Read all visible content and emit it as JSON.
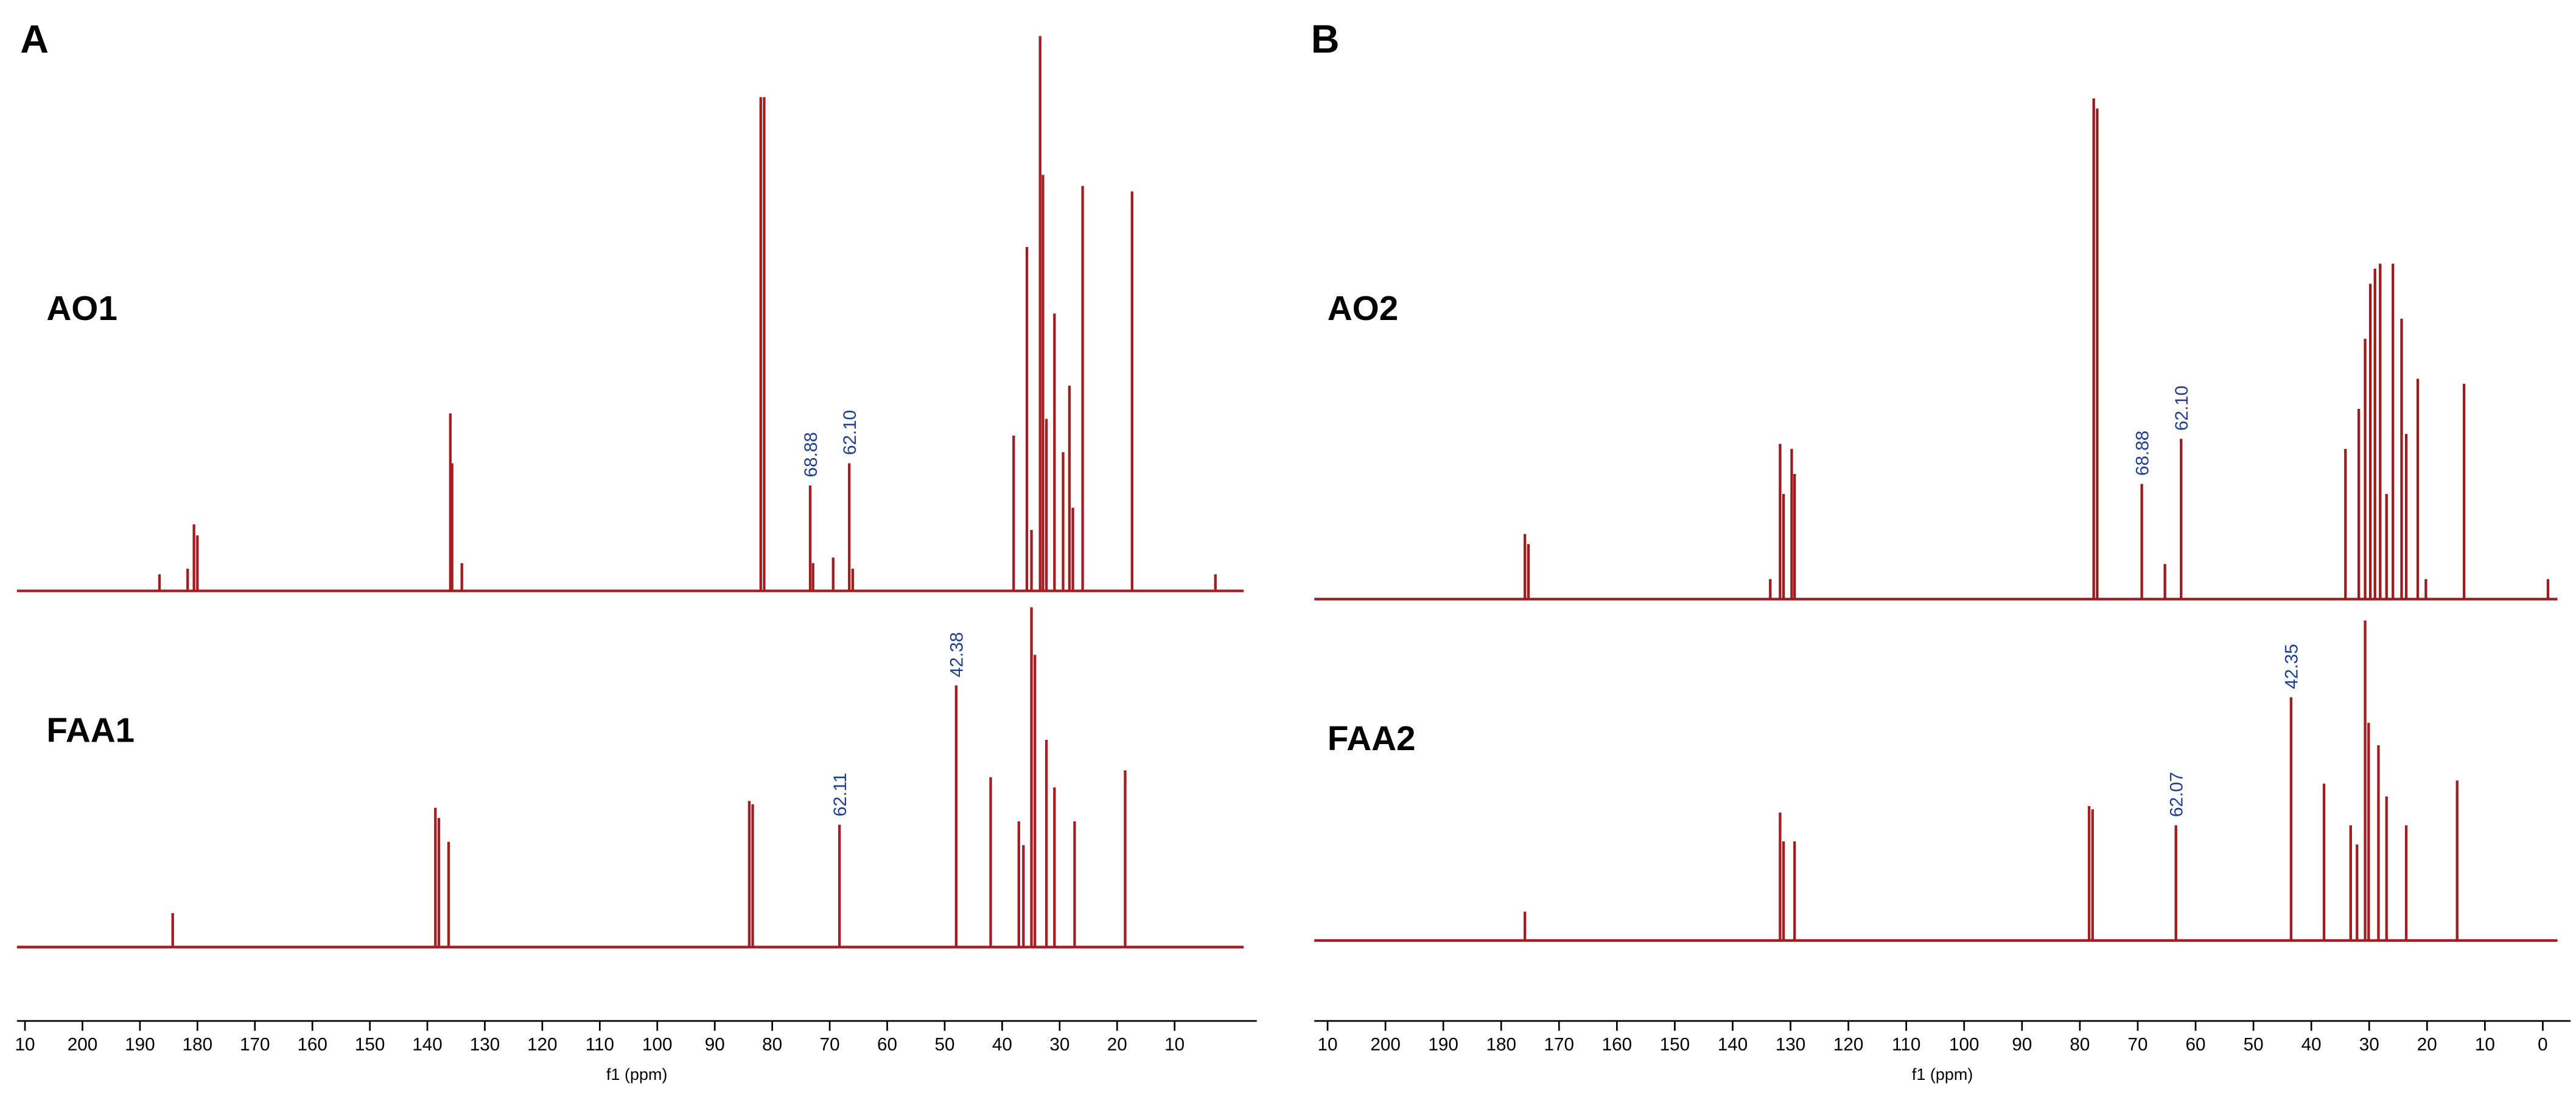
{
  "chart_data": [
    {
      "type": "spectrum",
      "panel_label": "A",
      "xlabel": "f1 (ppm)",
      "xlim": [
        211.4,
        -4.3
      ],
      "xticks": [
        {
          "value": 210,
          "label": "10"
        },
        200,
        190,
        180,
        170,
        160,
        150,
        140,
        130,
        120,
        110,
        100,
        90,
        80,
        70,
        60,
        50,
        40,
        30,
        20,
        10
      ],
      "spectra": [
        {
          "name": "AO1",
          "color": "#a31e22",
          "ylim": [
            0,
            100
          ],
          "x": [
            186.6,
            181.7,
            180.6,
            180.0,
            136.0,
            135.7,
            134.0,
            82.0,
            81.4,
            73.4,
            72.9,
            69.4,
            66.6,
            66.0,
            38.0,
            35.7,
            34.9,
            33.4,
            32.9,
            32.3,
            30.9,
            29.4,
            28.3,
            27.7,
            26.0,
            17.4,
            2.9
          ],
          "values": [
            3,
            4,
            12,
            10,
            32,
            23,
            5,
            89,
            89,
            19,
            5,
            6,
            23,
            4,
            28,
            62,
            11,
            100,
            75,
            31,
            50,
            25,
            37,
            15,
            73,
            72,
            3
          ],
          "peak_labels": [
            null,
            null,
            null,
            null,
            null,
            null,
            null,
            null,
            null,
            "68.88",
            null,
            null,
            "62.10",
            null,
            null,
            null,
            null,
            null,
            null,
            null,
            null,
            null,
            null,
            null,
            null,
            null,
            null
          ]
        },
        {
          "name": "FAA1",
          "color": "#a31e22",
          "ylim": [
            0,
            100
          ],
          "x": [
            184.3,
            138.6,
            138.0,
            136.3,
            84.0,
            83.4,
            68.3,
            48.0,
            42.0,
            37.1,
            36.3,
            34.9,
            34.3,
            32.3,
            30.9,
            27.4,
            18.6
          ],
          "values": [
            10,
            41,
            38,
            31,
            43,
            42,
            36,
            77,
            50,
            37,
            30,
            100,
            86,
            61,
            47,
            37,
            52
          ],
          "peak_labels": [
            null,
            null,
            null,
            null,
            null,
            null,
            "62.11",
            "42.38",
            null,
            null,
            null,
            null,
            null,
            null,
            null,
            null,
            null
          ]
        }
      ]
    },
    {
      "type": "spectrum",
      "panel_label": "B",
      "xlabel": "f1 (ppm)",
      "xlim": [
        212.3,
        -4.8
      ],
      "xticks": [
        {
          "value": 210,
          "label": "10"
        },
        200,
        190,
        180,
        170,
        160,
        150,
        140,
        130,
        120,
        110,
        100,
        90,
        80,
        70,
        60,
        50,
        40,
        30,
        20,
        10,
        0
      ],
      "spectra": [
        {
          "name": "AO2",
          "color": "#9b1b1f",
          "ylim": [
            0,
            100
          ],
          "x": [
            175.9,
            175.3,
            133.5,
            131.8,
            131.2,
            129.8,
            129.3,
            77.6,
            77.0,
            69.3,
            65.3,
            62.5,
            34.1,
            31.8,
            30.7,
            29.8,
            29.0,
            28.1,
            27.0,
            25.9,
            24.4,
            23.6,
            21.6,
            20.2,
            13.6,
            -0.9
          ],
          "values": [
            13,
            11,
            4,
            31,
            21,
            30,
            25,
            100,
            98,
            23,
            7,
            32,
            30,
            38,
            52,
            63,
            66,
            67,
            21,
            67,
            56,
            33,
            44,
            4,
            43,
            4
          ],
          "peak_labels": [
            null,
            null,
            null,
            null,
            null,
            null,
            null,
            null,
            null,
            "68.88",
            null,
            "62.10",
            null,
            null,
            null,
            null,
            null,
            null,
            null,
            null,
            null,
            null,
            null,
            null,
            null,
            null
          ]
        },
        {
          "name": "FAA2",
          "color": "#a31e22",
          "ylim": [
            0,
            100
          ],
          "x": [
            175.9,
            131.8,
            131.2,
            129.3,
            78.4,
            77.8,
            63.4,
            43.5,
            37.8,
            33.2,
            32.1,
            30.7,
            30.1,
            28.4,
            27.0,
            23.6,
            14.8
          ],
          "values": [
            9,
            40,
            31,
            31,
            42,
            41,
            36,
            76,
            49,
            36,
            30,
            100,
            68,
            61,
            45,
            36,
            50
          ],
          "peak_labels": [
            null,
            null,
            null,
            null,
            null,
            null,
            "62.07",
            "42.35",
            null,
            null,
            null,
            null,
            null,
            null,
            null,
            null,
            null
          ]
        }
      ]
    }
  ]
}
